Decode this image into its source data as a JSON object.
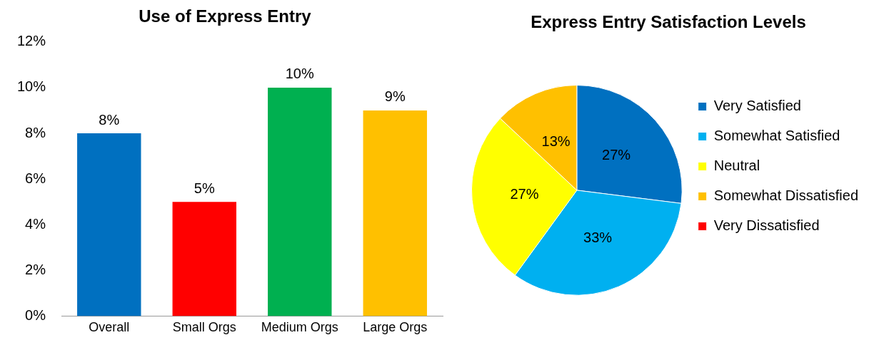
{
  "chart_data": [
    {
      "type": "bar",
      "title": "Use of Express Entry",
      "categories": [
        "Overall",
        "Small Orgs",
        "Medium Orgs",
        "Large Orgs"
      ],
      "values": [
        8,
        5,
        10,
        9
      ],
      "colors": [
        "#0070c0",
        "#ff0000",
        "#00b050",
        "#ffc000"
      ],
      "value_labels": [
        "8%",
        "5%",
        "10%",
        "9%"
      ],
      "ylim": [
        0,
        12
      ],
      "yticks": [
        {
          "value": 0,
          "label": "0%"
        },
        {
          "value": 2,
          "label": "2%"
        },
        {
          "value": 4,
          "label": "4%"
        },
        {
          "value": 6,
          "label": "6%"
        },
        {
          "value": 8,
          "label": "8%"
        },
        {
          "value": 10,
          "label": "10%"
        },
        {
          "value": 12,
          "label": "12%"
        }
      ],
      "grid": false,
      "legend": false
    },
    {
      "type": "pie",
      "title": "Express Entry Satisfaction Levels",
      "categories": [
        "Very Satisfied",
        "Somewhat Satisfied",
        "Neutral",
        "Somewhat Dissatisfied",
        "Very Dissatisfied"
      ],
      "values": [
        27,
        33,
        27,
        13,
        0
      ],
      "colors": [
        "#0070c0",
        "#00b0f0",
        "#ffff00",
        "#ffc000",
        "#ff0000"
      ],
      "value_labels": [
        "27%",
        "33%",
        "27%",
        "13%",
        null
      ],
      "legend": "right"
    }
  ]
}
